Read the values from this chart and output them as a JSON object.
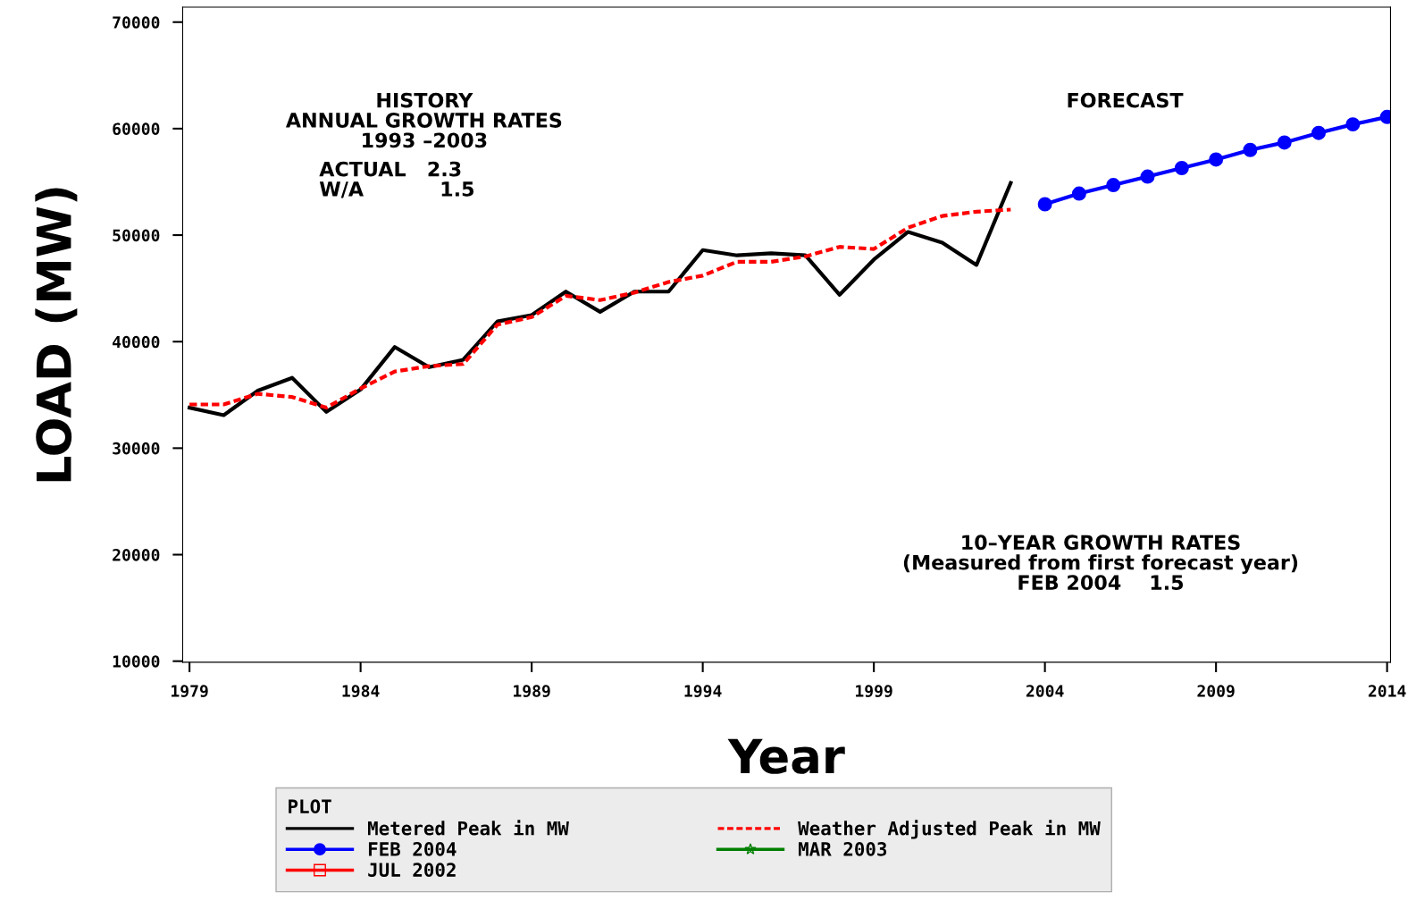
{
  "chart_data": {
    "type": "line",
    "xlabel": "Year",
    "ylabel": "LOAD (MW)",
    "x": [
      1979,
      1980,
      1981,
      1982,
      1983,
      1984,
      1985,
      1986,
      1987,
      1988,
      1989,
      1990,
      1991,
      1992,
      1993,
      1994,
      1995,
      1996,
      1997,
      1998,
      1999,
      2000,
      2001,
      2002,
      2003
    ],
    "series": [
      {
        "name": "Metered Peak in MW",
        "color": "#000000",
        "line_style": "solid",
        "marker": "none",
        "values": [
          33800,
          33100,
          35400,
          36600,
          33400,
          35500,
          39500,
          37600,
          38300,
          41900,
          42500,
          44700,
          42800,
          44700,
          44700,
          48600,
          48100,
          48300,
          48100,
          44400,
          47700,
          50300,
          49300,
          47200,
          54900
        ]
      },
      {
        "name": "FEB 2004",
        "color": "#0000ff",
        "line_style": "solid",
        "marker": "circle",
        "x": [
          2004,
          2005,
          2006,
          2007,
          2008,
          2009,
          2010,
          2011,
          2012,
          2013,
          2014
        ],
        "values": [
          52900,
          53900,
          54700,
          55500,
          56300,
          57100,
          58000,
          58700,
          59600,
          60400,
          61100
        ]
      },
      {
        "name": "JUL 2002",
        "color": "#ff0000",
        "line_style": "solid",
        "marker": "square",
        "values": [
          null,
          null,
          null,
          null,
          null,
          null,
          null,
          null,
          null,
          null,
          null,
          null,
          null,
          null,
          null,
          null,
          null,
          null,
          null,
          null,
          null,
          null,
          null,
          null,
          null
        ]
      },
      {
        "name": "Weather Adjusted Peak in MW",
        "color": "#ff0000",
        "line_style": "dashed",
        "marker": "none",
        "values": [
          34100,
          34100,
          35100,
          34800,
          33800,
          35600,
          37200,
          37700,
          37900,
          41600,
          42300,
          44300,
          43900,
          44600,
          45600,
          46200,
          47500,
          47500,
          48000,
          48900,
          48700,
          50700,
          51800,
          52200,
          52400
        ]
      },
      {
        "name": "MAR 2003",
        "color": "#008000",
        "line_style": "solid",
        "marker": "star",
        "values": [
          null,
          null,
          null,
          null,
          null,
          null,
          null,
          null,
          null,
          null,
          null,
          null,
          null,
          null,
          null,
          null,
          null,
          null,
          null,
          null,
          null,
          null,
          null,
          null,
          null
        ]
      }
    ],
    "xlim": [
      1978.8,
      2014.1
    ],
    "xticks": [
      1979,
      1984,
      1989,
      1994,
      1999,
      2004,
      2009,
      2014
    ],
    "ylim": [
      9900,
      71400
    ],
    "yticks": [
      10000,
      20000,
      30000,
      40000,
      50000,
      60000,
      70000
    ],
    "grid": false,
    "legend": "bottom",
    "legend_title": "PLOT",
    "annotations": [
      "HISTORY\nANNUAL GROWTH RATES\n1993 –2003",
      "ACTUAL   2.3\nW/A           1.5",
      "FORECAST",
      "10–YEAR GROWTH RATES\n(Measured from first forecast year)\nFEB 2004    1.5"
    ]
  }
}
